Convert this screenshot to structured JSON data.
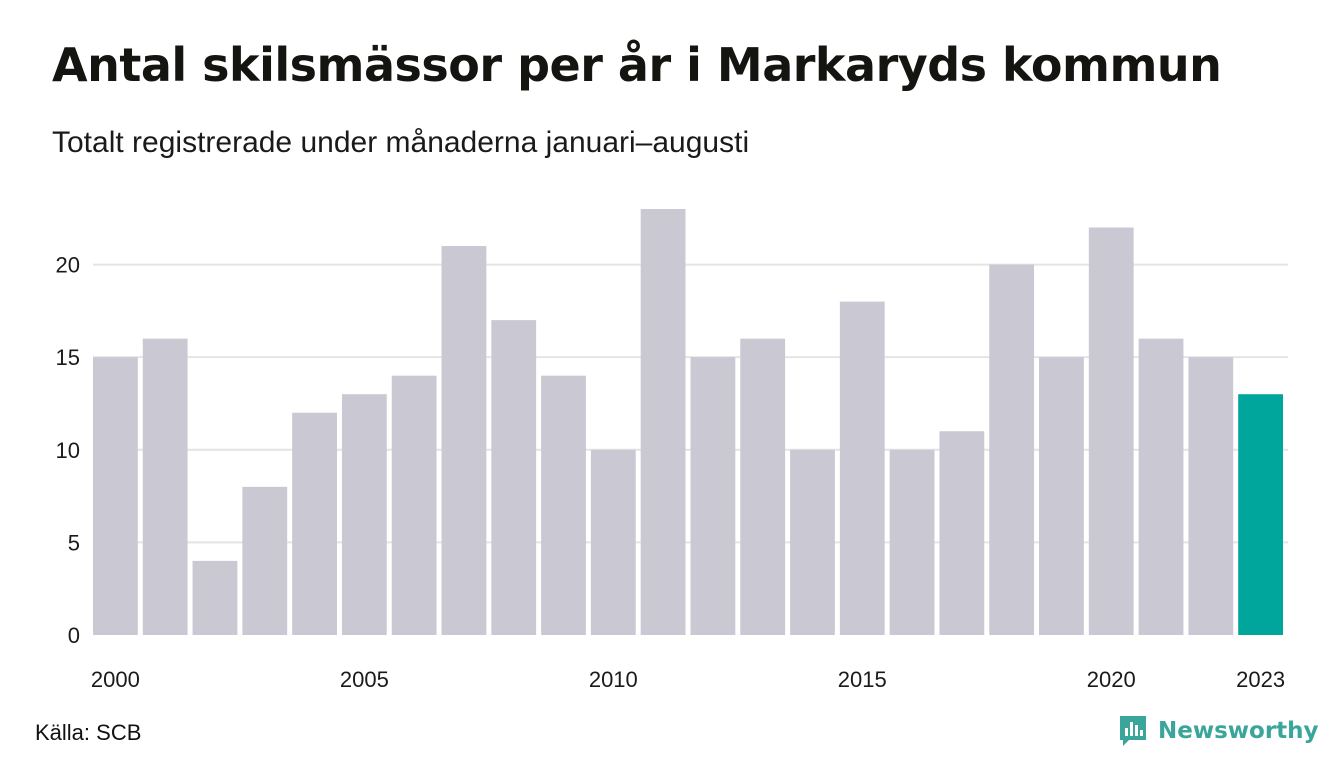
{
  "title": "Antal skilsmässor per år i Markaryds kommun",
  "subtitle": "Totalt registrerade under månaderna januari–augusti",
  "source": "Källa: SCB",
  "brand": {
    "name": "Newsworthy",
    "color": "#3aa59a",
    "icon": "newsworthy-chart-logo-icon"
  },
  "colors": {
    "bar": "#c9c8d3",
    "highlight": "#00a59b",
    "grid": "#e4e4e4",
    "text": "#1a1a1a"
  },
  "chart_data": {
    "type": "bar",
    "categories": [
      "2000",
      "2001",
      "2002",
      "2003",
      "2004",
      "2005",
      "2006",
      "2007",
      "2008",
      "2009",
      "2010",
      "2011",
      "2012",
      "2013",
      "2014",
      "2015",
      "2016",
      "2017",
      "2018",
      "2019",
      "2020",
      "2021",
      "2022",
      "2023"
    ],
    "values": [
      15,
      16,
      4,
      8,
      12,
      13,
      14,
      21,
      17,
      14,
      10,
      23,
      15,
      16,
      10,
      18,
      10,
      11,
      20,
      15,
      22,
      16,
      15,
      13
    ],
    "highlight_category": "2023",
    "x_tick_labels": [
      "2000",
      "2005",
      "2010",
      "2015",
      "2020",
      "2023"
    ],
    "y_ticks": [
      0,
      5,
      10,
      15,
      20
    ],
    "ylim": [
      0,
      23
    ],
    "grid": "horizontal",
    "legend": "none"
  }
}
